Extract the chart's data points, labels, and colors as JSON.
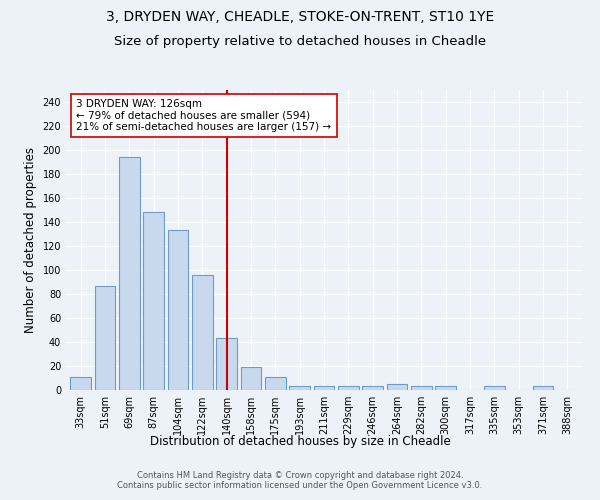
{
  "title1": "3, DRYDEN WAY, CHEADLE, STOKE-ON-TRENT, ST10 1YE",
  "title2": "Size of property relative to detached houses in Cheadle",
  "xlabel": "Distribution of detached houses by size in Cheadle",
  "ylabel": "Number of detached properties",
  "categories": [
    "33sqm",
    "51sqm",
    "69sqm",
    "87sqm",
    "104sqm",
    "122sqm",
    "140sqm",
    "158sqm",
    "175sqm",
    "193sqm",
    "211sqm",
    "229sqm",
    "246sqm",
    "264sqm",
    "282sqm",
    "300sqm",
    "317sqm",
    "335sqm",
    "353sqm",
    "371sqm",
    "388sqm"
  ],
  "values": [
    11,
    87,
    194,
    148,
    133,
    96,
    43,
    19,
    11,
    3,
    3,
    3,
    3,
    5,
    3,
    3,
    0,
    3,
    0,
    3,
    0
  ],
  "bar_color": "#c9d9ed",
  "bar_edge_color": "#6b9dc8",
  "vline_x": 6.0,
  "vline_color": "#cc0000",
  "annotation_text": "3 DRYDEN WAY: 126sqm\n← 79% of detached houses are smaller (594)\n21% of semi-detached houses are larger (157) →",
  "annotation_box_color": "white",
  "annotation_box_edge": "#cc0000",
  "ylim": [
    0,
    250
  ],
  "yticks": [
    0,
    20,
    40,
    60,
    80,
    100,
    120,
    140,
    160,
    180,
    200,
    220,
    240
  ],
  "bg_color": "#edf2f9",
  "plot_bg_color": "#edf2f9",
  "footer_text": "Contains HM Land Registry data © Crown copyright and database right 2024.\nContains public sector information licensed under the Open Government Licence v3.0.",
  "title_fontsize": 10,
  "subtitle_fontsize": 9.5,
  "tick_fontsize": 7,
  "label_fontsize": 8.5,
  "annot_fontsize": 7.5
}
